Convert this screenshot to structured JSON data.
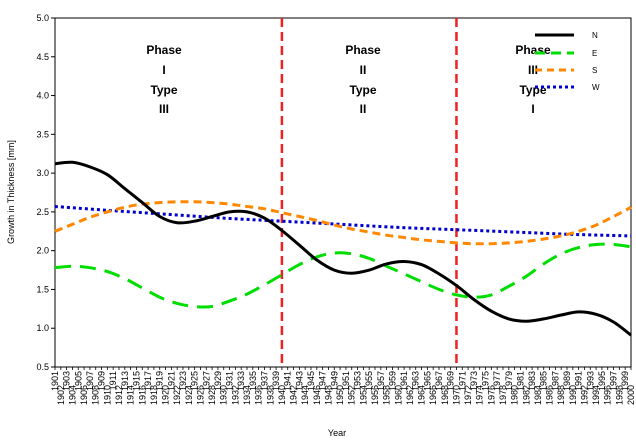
{
  "chart_data": {
    "type": "line",
    "xlabel": "Year",
    "ylabel": "Growth in Thickness [mm]",
    "xlim": [
      1901,
      2000
    ],
    "ylim": [
      0.5,
      5.0
    ],
    "yticks": [
      "0.5",
      "1.0",
      "1.5",
      "2.0",
      "2.5",
      "3.0",
      "3.5",
      "4.0",
      "4.5",
      "5.0"
    ],
    "grid": false,
    "legend_position": "top-right",
    "phase_boundaries": [
      1940,
      1970
    ],
    "phases": [
      {
        "line1": "Phase",
        "line2": "I",
        "line3": "Type",
        "line4": "III"
      },
      {
        "line1": "Phase",
        "line2": "II",
        "line3": "Type",
        "line4": "II"
      },
      {
        "line1": "Phase",
        "line2": "III",
        "line3": "Type",
        "line4": "I"
      }
    ],
    "series": [
      {
        "name": "N",
        "color": "#000000",
        "dash": "solid",
        "x": [
          1901,
          1904,
          1907,
          1910,
          1913,
          1916,
          1919,
          1922,
          1925,
          1928,
          1931,
          1934,
          1937,
          1940,
          1943,
          1946,
          1949,
          1952,
          1955,
          1958,
          1961,
          1964,
          1967,
          1970,
          1973,
          1976,
          1979,
          1982,
          1985,
          1988,
          1991,
          1994,
          1997,
          2000
        ],
        "y": [
          3.12,
          3.14,
          3.08,
          2.98,
          2.8,
          2.62,
          2.44,
          2.36,
          2.38,
          2.44,
          2.5,
          2.5,
          2.42,
          2.26,
          2.07,
          1.88,
          1.75,
          1.71,
          1.75,
          1.83,
          1.86,
          1.82,
          1.7,
          1.55,
          1.37,
          1.22,
          1.12,
          1.09,
          1.12,
          1.17,
          1.21,
          1.18,
          1.08,
          0.91
        ]
      },
      {
        "name": "E",
        "color": "#00dd00",
        "dash": "long",
        "x": [
          1901,
          1904,
          1907,
          1910,
          1913,
          1916,
          1919,
          1922,
          1925,
          1928,
          1931,
          1934,
          1937,
          1940,
          1943,
          1946,
          1949,
          1952,
          1955,
          1958,
          1961,
          1964,
          1967,
          1970,
          1973,
          1976,
          1979,
          1982,
          1985,
          1988,
          1991,
          1994,
          1997,
          2000
        ],
        "y": [
          1.78,
          1.8,
          1.78,
          1.73,
          1.64,
          1.52,
          1.4,
          1.32,
          1.28,
          1.28,
          1.35,
          1.44,
          1.56,
          1.69,
          1.82,
          1.92,
          1.97,
          1.96,
          1.9,
          1.8,
          1.7,
          1.6,
          1.5,
          1.43,
          1.4,
          1.43,
          1.54,
          1.67,
          1.83,
          1.96,
          2.04,
          2.08,
          2.08,
          2.05
        ]
      },
      {
        "name": "S",
        "color": "#ff8800",
        "dash": "medium",
        "x": [
          1901,
          1904,
          1907,
          1910,
          1913,
          1916,
          1919,
          1922,
          1925,
          1928,
          1931,
          1934,
          1937,
          1940,
          1943,
          1946,
          1949,
          1952,
          1955,
          1958,
          1961,
          1964,
          1967,
          1970,
          1973,
          1976,
          1979,
          1982,
          1985,
          1988,
          1991,
          1994,
          1997,
          2000
        ],
        "y": [
          2.25,
          2.34,
          2.43,
          2.5,
          2.56,
          2.6,
          2.62,
          2.63,
          2.63,
          2.62,
          2.6,
          2.57,
          2.54,
          2.49,
          2.44,
          2.39,
          2.33,
          2.28,
          2.24,
          2.2,
          2.17,
          2.14,
          2.12,
          2.1,
          2.09,
          2.09,
          2.1,
          2.12,
          2.15,
          2.19,
          2.25,
          2.33,
          2.44,
          2.56
        ]
      },
      {
        "name": "W",
        "color": "#0000cc",
        "dash": "dot",
        "x": [
          1901,
          1910,
          1920,
          1930,
          1940,
          1950,
          1960,
          1970,
          1980,
          1990,
          2000
        ],
        "y": [
          2.57,
          2.52,
          2.47,
          2.42,
          2.38,
          2.34,
          2.3,
          2.27,
          2.24,
          2.21,
          2.19
        ]
      }
    ]
  }
}
